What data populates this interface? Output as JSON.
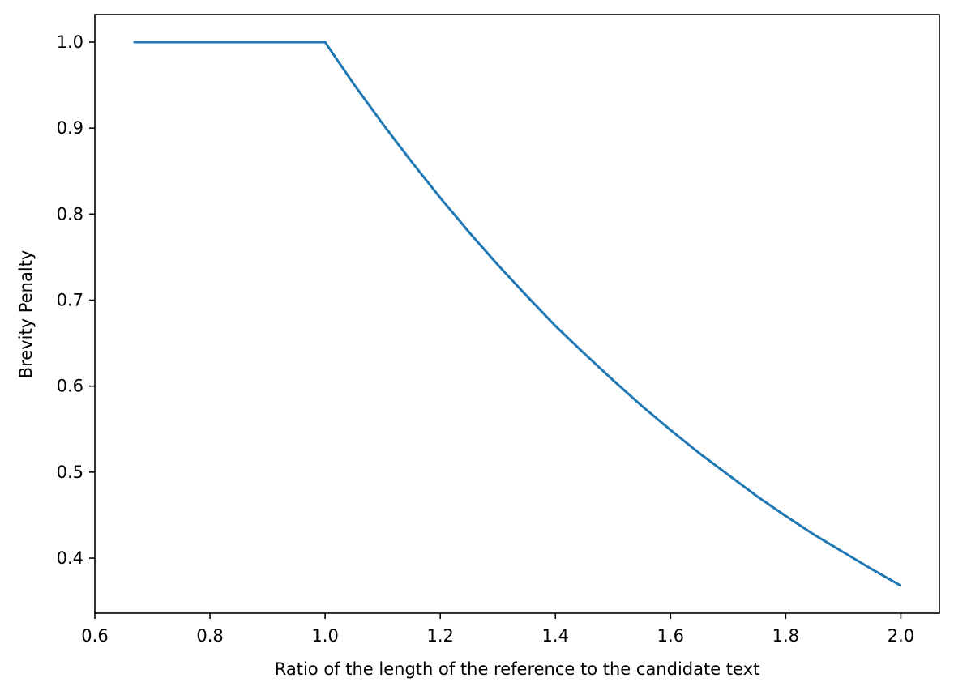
{
  "chart_data": {
    "type": "line",
    "title": "",
    "xlabel": "Ratio of the length of the reference to the candidate text",
    "ylabel": "Brevity Penalty",
    "xlim": [
      0.6,
      2.067
    ],
    "ylim": [
      0.336,
      1.032
    ],
    "xticks": [
      0.6,
      0.8,
      1.0,
      1.2,
      1.4,
      1.6,
      1.8,
      2.0
    ],
    "xtick_labels": [
      "0.6",
      "0.8",
      "1.0",
      "1.2",
      "1.4",
      "1.6",
      "1.8",
      "2.0"
    ],
    "yticks": [
      0.4,
      0.5,
      0.6,
      0.7,
      0.8,
      0.9,
      1.0
    ],
    "ytick_labels": [
      "0.4",
      "0.5",
      "0.6",
      "0.7",
      "0.8",
      "0.9",
      "1.0"
    ],
    "grid": false,
    "series": [
      {
        "color": "#1f77b4",
        "x": [
          0.667,
          0.7,
          0.75,
          0.8,
          0.85,
          0.9,
          0.95,
          0.995,
          1.0,
          1.005,
          1.01,
          1.05,
          1.1,
          1.15,
          1.2,
          1.25,
          1.3,
          1.35,
          1.4,
          1.45,
          1.5,
          1.55,
          1.6,
          1.65,
          1.7,
          1.75,
          1.8,
          1.85,
          1.9,
          1.95,
          2.0
        ],
        "y": [
          1.0,
          1.0,
          1.0,
          1.0,
          1.0,
          1.0,
          1.0,
          1.0,
          1.0,
          0.995,
          0.99,
          0.951,
          0.905,
          0.861,
          0.819,
          0.779,
          0.741,
          0.705,
          0.67,
          0.638,
          0.607,
          0.577,
          0.549,
          0.522,
          0.497,
          0.472,
          0.449,
          0.427,
          0.407,
          0.387,
          0.368
        ]
      }
    ]
  }
}
